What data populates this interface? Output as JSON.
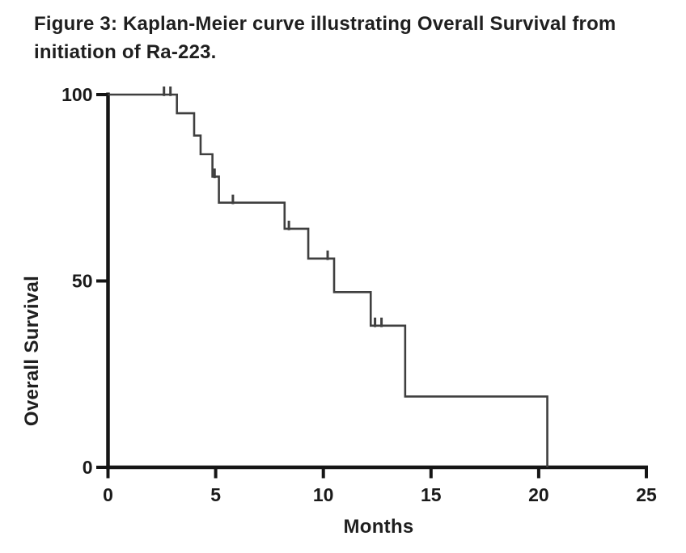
{
  "caption": "Figure 3: Kaplan-Meier curve illustrating Overall Survival from initiation of Ra-223.",
  "chart_data": {
    "type": "line",
    "subtype": "kaplan-meier-step-curve",
    "title": "Figure 3: Kaplan-Meier curve illustrating Overall Survival from initiation of Ra-223.",
    "xlabel": "Months",
    "ylabel": "Overall Survival",
    "xlim": [
      0,
      25
    ],
    "ylim": [
      0,
      100
    ],
    "x_ticks": [
      0,
      5,
      10,
      15,
      20,
      25
    ],
    "y_ticks": [
      100,
      50,
      0
    ],
    "grid": false,
    "legend": "none",
    "series": [
      {
        "name": "Overall Survival",
        "description": "Step function: survival % after each event time (months)",
        "steps": [
          [
            0,
            100
          ],
          [
            3.2,
            95
          ],
          [
            4.0,
            89
          ],
          [
            4.3,
            84
          ],
          [
            4.85,
            78
          ],
          [
            5.15,
            71
          ],
          [
            8.2,
            64
          ],
          [
            9.3,
            56
          ],
          [
            10.5,
            47
          ],
          [
            12.2,
            38
          ],
          [
            13.8,
            19
          ],
          [
            20.4,
            0
          ]
        ],
        "censor_marks": [
          [
            2.6,
            100
          ],
          [
            2.9,
            100
          ],
          [
            4.95,
            78
          ],
          [
            5.8,
            71
          ],
          [
            8.4,
            64
          ],
          [
            10.2,
            56
          ],
          [
            12.4,
            38
          ],
          [
            12.7,
            38
          ]
        ]
      }
    ],
    "colors": {
      "curve": "#3f3f3f",
      "axis": "#151515",
      "text": "#1a1a1a",
      "background": "#ffffff"
    }
  }
}
